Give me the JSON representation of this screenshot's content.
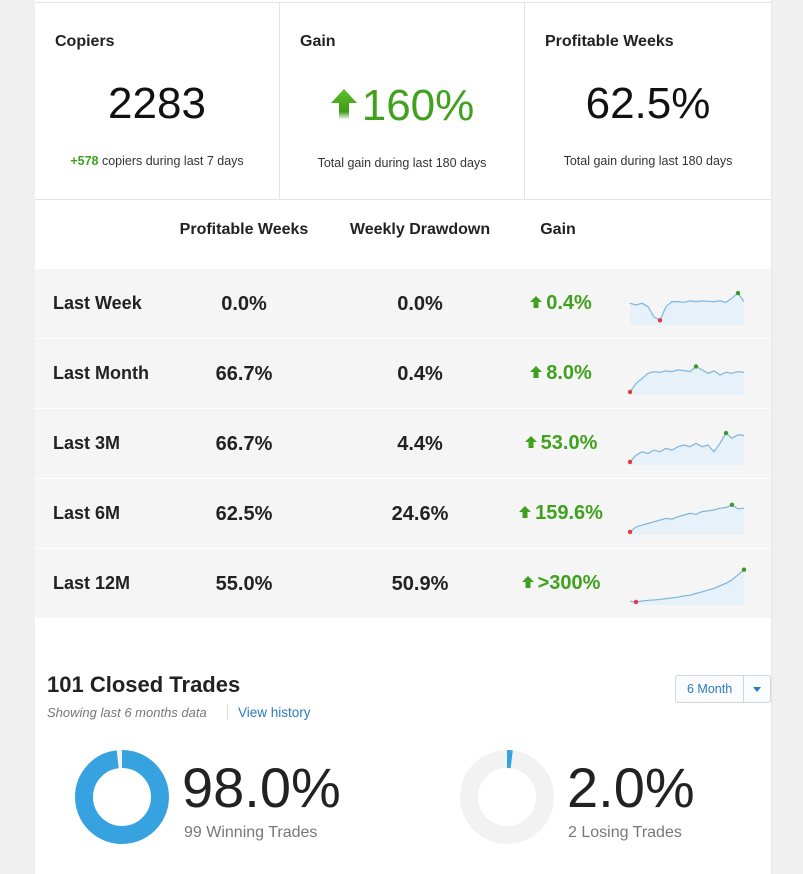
{
  "summary": {
    "copiers": {
      "label": "Copiers",
      "value": "2283",
      "delta": "+578",
      "delta_text": " copiers during last 7 days"
    },
    "gain": {
      "label": "Gain",
      "value": "160%",
      "note": "Total gain during last 180 days"
    },
    "profitable_weeks": {
      "label": "Profitable Weeks",
      "value": "62.5%",
      "note": "Total gain during last 180 days"
    }
  },
  "table": {
    "headers": {
      "profitable_weeks": "Profitable Weeks",
      "weekly_drawdown": "Weekly Drawdown",
      "gain": "Gain"
    },
    "rows": [
      {
        "period": "Last Week",
        "profitable": "0.0%",
        "drawdown": "0.0%",
        "gain": "0.4%",
        "spark": [
          0.55,
          0.5,
          0.55,
          0.45,
          0.15,
          0.05,
          0.45,
          0.6,
          0.6,
          0.58,
          0.62,
          0.6,
          0.62,
          0.61,
          0.6,
          0.62,
          0.58,
          0.7,
          0.85,
          0.6
        ],
        "min_index": 5,
        "max_index": 18
      },
      {
        "period": "Last Month",
        "profitable": "66.7%",
        "drawdown": "0.4%",
        "gain": "8.0%",
        "spark": [
          0.0,
          0.25,
          0.4,
          0.55,
          0.6,
          0.58,
          0.62,
          0.6,
          0.65,
          0.63,
          0.6,
          0.75,
          0.65,
          0.55,
          0.62,
          0.5,
          0.58,
          0.55,
          0.6,
          0.58
        ],
        "min_index": 0,
        "max_index": 11
      },
      {
        "period": "Last 3M",
        "profitable": "66.7%",
        "drawdown": "4.4%",
        "gain": "53.0%",
        "spark": [
          0.0,
          0.2,
          0.3,
          0.25,
          0.35,
          0.3,
          0.4,
          0.35,
          0.45,
          0.5,
          0.45,
          0.55,
          0.45,
          0.5,
          0.3,
          0.55,
          0.85,
          0.7,
          0.8,
          0.78
        ],
        "min_index": 0,
        "max_index": 16
      },
      {
        "period": "Last 6M",
        "profitable": "62.5%",
        "drawdown": "24.6%",
        "gain": "159.6%",
        "spark": [
          0.0,
          0.15,
          0.2,
          0.25,
          0.3,
          0.35,
          0.4,
          0.38,
          0.45,
          0.5,
          0.55,
          0.52,
          0.6,
          0.62,
          0.65,
          0.7,
          0.72,
          0.8,
          0.68,
          0.7
        ],
        "min_index": 0,
        "max_index": 17
      },
      {
        "period": "Last 12M",
        "profitable": "55.0%",
        "drawdown": "50.9%",
        "gain": ">300%",
        "spark": [
          0.02,
          0.0,
          0.03,
          0.05,
          0.06,
          0.08,
          0.1,
          0.12,
          0.14,
          0.18,
          0.2,
          0.25,
          0.3,
          0.35,
          0.4,
          0.48,
          0.55,
          0.65,
          0.8,
          0.95
        ],
        "min_index": 1,
        "max_index": 19
      }
    ]
  },
  "closed_trades": {
    "title": "101 Closed Trades",
    "subtitle": "Showing last 6 months data",
    "history_link": "View history",
    "range_select": "6 Month",
    "winning": {
      "percent": "98.0%",
      "label": "99 Winning Trades",
      "fraction": 0.98
    },
    "losing": {
      "percent": "2.0%",
      "label": "2 Losing Trades",
      "fraction": 0.02
    }
  },
  "colors": {
    "positive": "#3fa11e",
    "link": "#2a7bbd",
    "donut": "#36a3e0",
    "donut_track": "#f2f2f2",
    "spark_line": "#7fb5dd",
    "spark_fill": "#e6f1f9",
    "spark_min": "#e03a3a",
    "spark_max": "#3a9a2a"
  },
  "icons": {
    "gain_arrow": "up-arrow-icon",
    "row_gain_arrow": "up-arrow-icon"
  }
}
